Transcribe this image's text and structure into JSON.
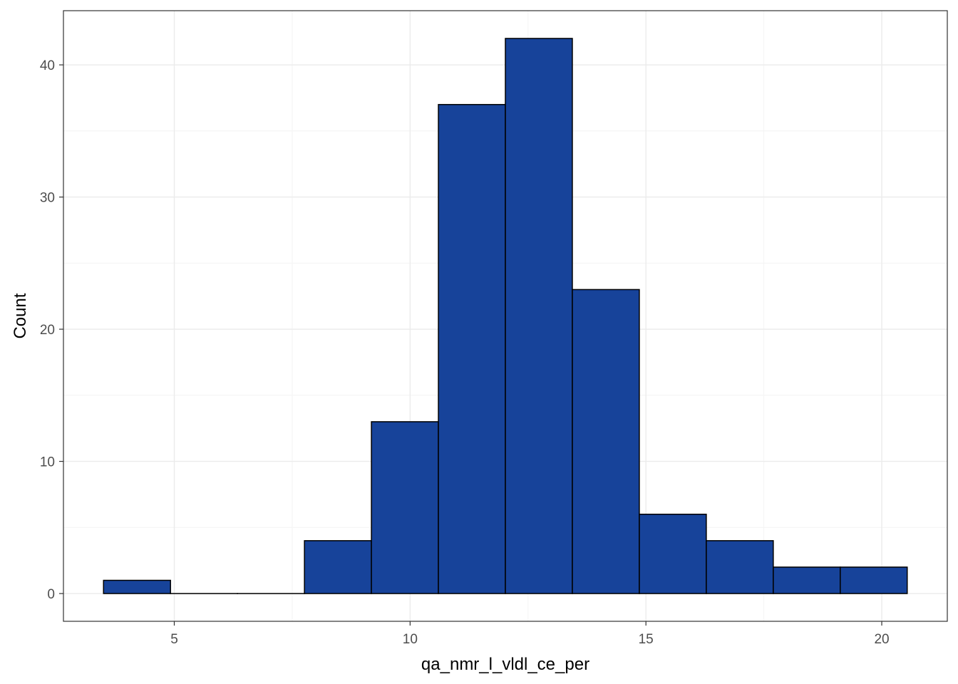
{
  "chart_data": {
    "type": "bar",
    "title": "",
    "xlabel": "qa_nmr_l_vldl_ce_per",
    "ylabel": "Count",
    "bin_edges": [
      3.5,
      4.92,
      6.34,
      7.76,
      9.18,
      10.6,
      12.02,
      13.44,
      14.86,
      16.28,
      17.7,
      19.12,
      20.54
    ],
    "values": [
      1,
      0,
      0,
      4,
      13,
      37,
      42,
      23,
      6,
      4,
      2,
      2
    ],
    "xlim": [
      2.65,
      21.39
    ],
    "ylim": [
      -2.1,
      44.1
    ],
    "x_ticks": [
      5,
      10,
      15,
      20
    ],
    "y_ticks": [
      0,
      10,
      20,
      30,
      40
    ],
    "grid": true,
    "colors": {
      "bar_fill": "#17439a",
      "bar_outline": "#000000",
      "grid_major": "#ebebeb",
      "grid_minor": "#f4f4f4",
      "panel_border": "#333333"
    }
  }
}
